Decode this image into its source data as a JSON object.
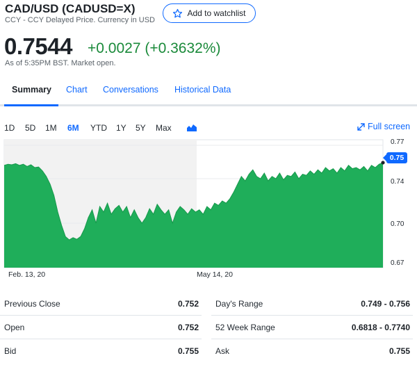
{
  "header": {
    "title": "CAD/USD (CADUSD=X)",
    "subtitle": "CCY - CCY Delayed Price. Currency in USD",
    "watchlist_label": "Add to watchlist"
  },
  "quote": {
    "price": "0.7544",
    "change": "+0.0027 (+0.3632%)",
    "as_of": "As of 5:35PM BST. Market open."
  },
  "tabs": [
    {
      "label": "Summary",
      "active": true
    },
    {
      "label": "Chart"
    },
    {
      "label": "Conversations"
    },
    {
      "label": "Historical Data"
    }
  ],
  "ranges": [
    {
      "label": "1D"
    },
    {
      "label": "5D"
    },
    {
      "label": "1M"
    },
    {
      "label": "6M",
      "active": true
    },
    {
      "label": "YTD"
    },
    {
      "label": "1Y"
    },
    {
      "label": "5Y"
    },
    {
      "label": "Max"
    }
  ],
  "chart_type_icon": "mountain-chart-icon",
  "fullscreen_label": "Full screen",
  "colors": {
    "accent": "#0f69ff",
    "area_fill": "#1fae5a",
    "positive": "#1a8a3a"
  },
  "chart_data": {
    "type": "area",
    "x_tick_labels": [
      "Feb. 13, 20",
      "May 14, 20"
    ],
    "y_tick_labels": [
      "0.77",
      "0.74",
      "0.70",
      "0.67"
    ],
    "ylim": [
      0.66,
      0.775
    ],
    "current_value_label": "0.75",
    "current_value": 0.7544,
    "series": [
      {
        "values": [
          0.752,
          0.753,
          0.7525,
          0.7535,
          0.752,
          0.753,
          0.751,
          0.7525,
          0.75,
          0.7505,
          0.747,
          0.742,
          0.735,
          0.725,
          0.71,
          0.698,
          0.688,
          0.685,
          0.687,
          0.6855,
          0.688,
          0.695,
          0.705,
          0.712,
          0.7,
          0.715,
          0.71,
          0.718,
          0.708,
          0.713,
          0.716,
          0.71,
          0.715,
          0.705,
          0.712,
          0.705,
          0.7,
          0.705,
          0.713,
          0.708,
          0.717,
          0.712,
          0.708,
          0.712,
          0.7,
          0.71,
          0.715,
          0.712,
          0.708,
          0.713,
          0.71,
          0.712,
          0.708,
          0.715,
          0.712,
          0.718,
          0.716,
          0.72,
          0.718,
          0.722,
          0.728,
          0.735,
          0.742,
          0.738,
          0.744,
          0.748,
          0.742,
          0.74,
          0.745,
          0.738,
          0.742,
          0.74,
          0.745,
          0.739,
          0.743,
          0.742,
          0.746,
          0.74,
          0.744,
          0.743,
          0.747,
          0.744,
          0.748,
          0.745,
          0.75,
          0.747,
          0.749,
          0.745,
          0.75,
          0.747,
          0.752,
          0.749,
          0.75,
          0.748,
          0.751,
          0.747,
          0.752,
          0.75,
          0.753,
          0.7544
        ]
      }
    ]
  },
  "stats": {
    "left": [
      {
        "label": "Previous Close",
        "value": "0.752"
      },
      {
        "label": "Open",
        "value": "0.752"
      },
      {
        "label": "Bid",
        "value": "0.755"
      }
    ],
    "right": [
      {
        "label": "Day's Range",
        "value": "0.749 - 0.756"
      },
      {
        "label": "52 Week Range",
        "value": "0.6818 - 0.7740"
      },
      {
        "label": "Ask",
        "value": "0.755"
      }
    ]
  }
}
